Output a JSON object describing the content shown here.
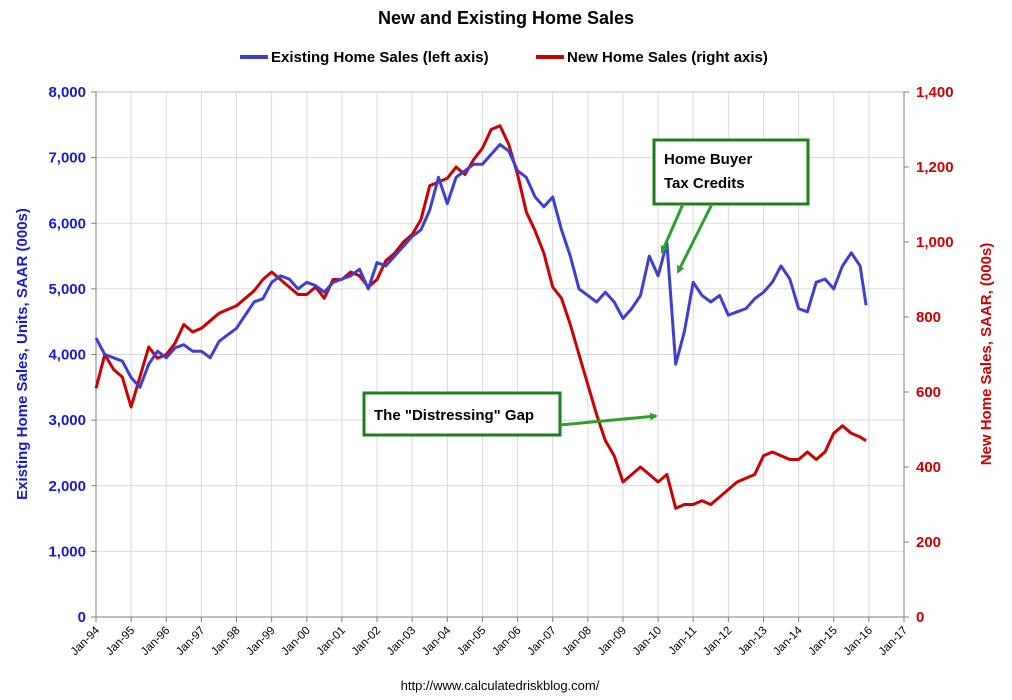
{
  "chart_data": {
    "type": "line",
    "title": "New and Existing Home Sales",
    "source": "http://www.calculatedriskblog.com/",
    "colors": {
      "existing": "#3f3fcf",
      "new": "#cc0000",
      "left_axis": "#1a1acc",
      "right_axis": "#cc0000",
      "annotation_border": "#1e7d1e",
      "annotation_arrow": "#2fa02f",
      "grid": "#d9d9d9"
    },
    "legend": [
      {
        "label": "Existing Home Sales (left axis)",
        "color": "#3f3fcf"
      },
      {
        "label": "New Home Sales (right axis)",
        "color": "#cc0000"
      }
    ],
    "legend_position": "top",
    "grid": true,
    "x_ticks": [
      "Jan-94",
      "Jan-95",
      "Jan-96",
      "Jan-97",
      "Jan-98",
      "Jan-99",
      "Jan-00",
      "Jan-01",
      "Jan-02",
      "Jan-03",
      "Jan-04",
      "Jan-05",
      "Jan-06",
      "Jan-07",
      "Jan-08",
      "Jan-09",
      "Jan-10",
      "Jan-11",
      "Jan-12",
      "Jan-13",
      "Jan-14",
      "Jan-15",
      "Jan-16",
      "Jan-17"
    ],
    "xlim": [
      1994,
      2017
    ],
    "y_left": {
      "label": "Existing Home Sales, Units, SAAR (000s)",
      "ylim": [
        0,
        8000
      ],
      "ticks": [
        "0",
        "1,000",
        "2,000",
        "3,000",
        "4,000",
        "5,000",
        "6,000",
        "7,000",
        "8,000"
      ]
    },
    "y_right": {
      "label": "New Home Sales, SAAR, (000s)",
      "ylim": [
        0,
        1400
      ],
      "ticks": [
        "0",
        "200",
        "400",
        "600",
        "800",
        "1,000",
        "1,200",
        "1,400"
      ]
    },
    "annotations": [
      {
        "text_lines": [
          "Home Buyer",
          "Tax Credits"
        ]
      },
      {
        "text_lines": [
          "The \"Distressing\" Gap"
        ]
      }
    ],
    "series": [
      {
        "name": "Existing Home Sales (left axis)",
        "axis": "left",
        "points": [
          [
            1994.0,
            4250
          ],
          [
            1994.25,
            4000
          ],
          [
            1994.5,
            3950
          ],
          [
            1994.75,
            3900
          ],
          [
            1995.0,
            3650
          ],
          [
            1995.25,
            3500
          ],
          [
            1995.5,
            3850
          ],
          [
            1995.75,
            4050
          ],
          [
            1996.0,
            3950
          ],
          [
            1996.25,
            4100
          ],
          [
            1996.5,
            4150
          ],
          [
            1996.75,
            4050
          ],
          [
            1997.0,
            4050
          ],
          [
            1997.25,
            3950
          ],
          [
            1997.5,
            4200
          ],
          [
            1997.75,
            4300
          ],
          [
            1998.0,
            4400
          ],
          [
            1998.25,
            4600
          ],
          [
            1998.5,
            4800
          ],
          [
            1998.75,
            4850
          ],
          [
            1999.0,
            5100
          ],
          [
            1999.25,
            5200
          ],
          [
            1999.5,
            5150
          ],
          [
            1999.75,
            5000
          ],
          [
            2000.0,
            5100
          ],
          [
            2000.25,
            5050
          ],
          [
            2000.5,
            4950
          ],
          [
            2000.75,
            5100
          ],
          [
            2001.0,
            5150
          ],
          [
            2001.25,
            5200
          ],
          [
            2001.5,
            5300
          ],
          [
            2001.75,
            5000
          ],
          [
            2002.0,
            5400
          ],
          [
            2002.25,
            5350
          ],
          [
            2002.5,
            5500
          ],
          [
            2002.75,
            5650
          ],
          [
            2003.0,
            5800
          ],
          [
            2003.25,
            5900
          ],
          [
            2003.5,
            6200
          ],
          [
            2003.75,
            6700
          ],
          [
            2004.0,
            6300
          ],
          [
            2004.25,
            6700
          ],
          [
            2004.5,
            6800
          ],
          [
            2004.75,
            6900
          ],
          [
            2005.0,
            6900
          ],
          [
            2005.25,
            7050
          ],
          [
            2005.5,
            7200
          ],
          [
            2005.75,
            7100
          ],
          [
            2006.0,
            6800
          ],
          [
            2006.25,
            6700
          ],
          [
            2006.5,
            6400
          ],
          [
            2006.75,
            6250
          ],
          [
            2007.0,
            6400
          ],
          [
            2007.25,
            5900
          ],
          [
            2007.5,
            5500
          ],
          [
            2007.75,
            5000
          ],
          [
            2008.0,
            4900
          ],
          [
            2008.25,
            4800
          ],
          [
            2008.5,
            4950
          ],
          [
            2008.75,
            4800
          ],
          [
            2009.0,
            4550
          ],
          [
            2009.25,
            4700
          ],
          [
            2009.5,
            4900
          ],
          [
            2009.75,
            5500
          ],
          [
            2010.0,
            5200
          ],
          [
            2010.25,
            5700
          ],
          [
            2010.5,
            3850
          ],
          [
            2010.75,
            4350
          ],
          [
            2011.0,
            5100
          ],
          [
            2011.25,
            4900
          ],
          [
            2011.5,
            4800
          ],
          [
            2011.75,
            4900
          ],
          [
            2012.0,
            4600
          ],
          [
            2012.25,
            4650
          ],
          [
            2012.5,
            4700
          ],
          [
            2012.75,
            4850
          ],
          [
            2013.0,
            4950
          ],
          [
            2013.25,
            5100
          ],
          [
            2013.5,
            5350
          ],
          [
            2013.75,
            5150
          ],
          [
            2014.0,
            4700
          ],
          [
            2014.25,
            4650
          ],
          [
            2014.5,
            5100
          ],
          [
            2014.75,
            5150
          ],
          [
            2015.0,
            5000
          ],
          [
            2015.25,
            5350
          ],
          [
            2015.5,
            5550
          ],
          [
            2015.75,
            5350
          ],
          [
            2015.92,
            4750
          ]
        ]
      },
      {
        "name": "New Home Sales (right axis)",
        "axis": "right",
        "points": [
          [
            1994.0,
            610
          ],
          [
            1994.25,
            700
          ],
          [
            1994.5,
            660
          ],
          [
            1994.75,
            640
          ],
          [
            1995.0,
            560
          ],
          [
            1995.25,
            640
          ],
          [
            1995.5,
            720
          ],
          [
            1995.75,
            690
          ],
          [
            1996.0,
            700
          ],
          [
            1996.25,
            730
          ],
          [
            1996.5,
            780
          ],
          [
            1996.75,
            760
          ],
          [
            1997.0,
            770
          ],
          [
            1997.25,
            790
          ],
          [
            1997.5,
            810
          ],
          [
            1997.75,
            820
          ],
          [
            1998.0,
            830
          ],
          [
            1998.25,
            850
          ],
          [
            1998.5,
            870
          ],
          [
            1998.75,
            900
          ],
          [
            1999.0,
            920
          ],
          [
            1999.25,
            900
          ],
          [
            1999.5,
            880
          ],
          [
            1999.75,
            860
          ],
          [
            2000.0,
            860
          ],
          [
            2000.25,
            880
          ],
          [
            2000.5,
            850
          ],
          [
            2000.75,
            900
          ],
          [
            2001.0,
            900
          ],
          [
            2001.25,
            920
          ],
          [
            2001.5,
            910
          ],
          [
            2001.75,
            880
          ],
          [
            2002.0,
            900
          ],
          [
            2002.25,
            950
          ],
          [
            2002.5,
            970
          ],
          [
            2002.75,
            1000
          ],
          [
            2003.0,
            1020
          ],
          [
            2003.25,
            1060
          ],
          [
            2003.5,
            1150
          ],
          [
            2003.75,
            1160
          ],
          [
            2004.0,
            1170
          ],
          [
            2004.25,
            1200
          ],
          [
            2004.5,
            1180
          ],
          [
            2004.75,
            1220
          ],
          [
            2005.0,
            1250
          ],
          [
            2005.25,
            1300
          ],
          [
            2005.5,
            1310
          ],
          [
            2005.75,
            1260
          ],
          [
            2006.0,
            1180
          ],
          [
            2006.25,
            1080
          ],
          [
            2006.5,
            1030
          ],
          [
            2006.75,
            970
          ],
          [
            2007.0,
            880
          ],
          [
            2007.25,
            850
          ],
          [
            2007.5,
            780
          ],
          [
            2007.75,
            700
          ],
          [
            2008.0,
            620
          ],
          [
            2008.25,
            540
          ],
          [
            2008.5,
            470
          ],
          [
            2008.75,
            430
          ],
          [
            2009.0,
            360
          ],
          [
            2009.25,
            380
          ],
          [
            2009.5,
            400
          ],
          [
            2009.75,
            380
          ],
          [
            2010.0,
            360
          ],
          [
            2010.25,
            380
          ],
          [
            2010.5,
            290
          ],
          [
            2010.75,
            300
          ],
          [
            2011.0,
            300
          ],
          [
            2011.25,
            310
          ],
          [
            2011.5,
            300
          ],
          [
            2011.75,
            320
          ],
          [
            2012.0,
            340
          ],
          [
            2012.25,
            360
          ],
          [
            2012.5,
            370
          ],
          [
            2012.75,
            380
          ],
          [
            2013.0,
            430
          ],
          [
            2013.25,
            440
          ],
          [
            2013.5,
            430
          ],
          [
            2013.75,
            420
          ],
          [
            2014.0,
            420
          ],
          [
            2014.25,
            440
          ],
          [
            2014.5,
            420
          ],
          [
            2014.75,
            440
          ],
          [
            2015.0,
            490
          ],
          [
            2015.25,
            510
          ],
          [
            2015.5,
            490
          ],
          [
            2015.75,
            480
          ],
          [
            2015.92,
            470
          ]
        ]
      }
    ]
  }
}
